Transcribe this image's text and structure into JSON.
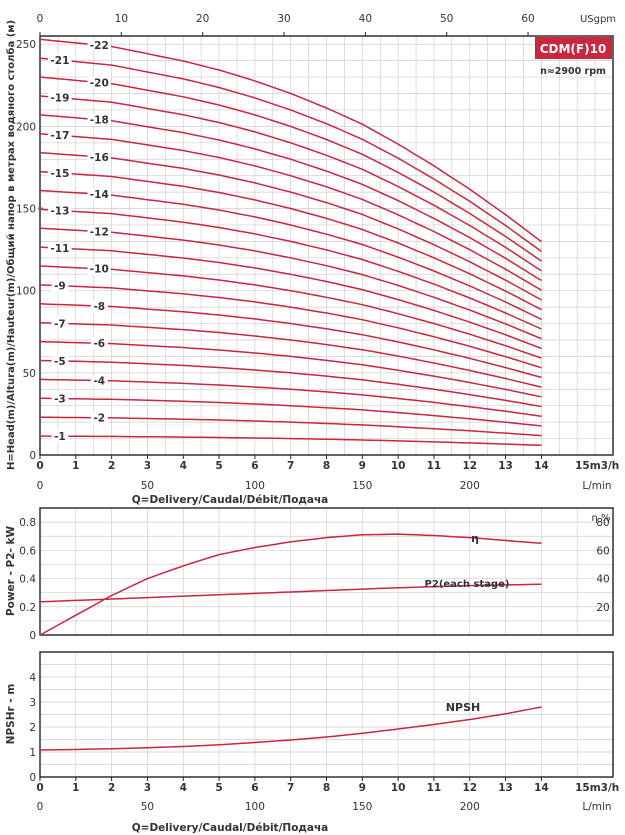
{
  "chart_data": [
    {
      "type": "line",
      "title": "CDM(F)10",
      "subtitle": "n≈2900 rpm",
      "ylabel": "H=Head(m)/Altura(m)/Hauteur(m)/Общий напор в метрах водяного столба (м)",
      "xlabel": "Q=Delivery/Caudal/Débit/Подача",
      "x_units": "m3/h",
      "x_alt_units_bottom": "L/min",
      "x_alt_units_top": "USgpm",
      "xlim": [
        0,
        16
      ],
      "ylim": [
        0,
        255
      ],
      "x_ticks": [
        0,
        1,
        2,
        3,
        4,
        5,
        6,
        7,
        8,
        9,
        10,
        11,
        12,
        13,
        14
      ],
      "x_last_tick_label": "15",
      "y_ticks": [
        0,
        50,
        100,
        150,
        200,
        250
      ],
      "lpm_ticks": [
        0,
        50,
        100,
        150,
        200
      ],
      "usgpm_ticks": [
        0,
        10,
        20,
        30,
        40,
        50,
        60
      ],
      "grid": true,
      "head_per_stage": {
        "x": [
          0,
          1,
          2,
          3,
          4,
          5,
          6,
          7,
          8,
          9,
          10,
          11,
          12,
          13,
          14
        ],
        "y": [
          11.5,
          11.4,
          11.3,
          11.1,
          10.9,
          10.65,
          10.35,
          10.0,
          9.6,
          9.15,
          8.6,
          8.0,
          7.35,
          6.65,
          5.9
        ]
      },
      "series": [
        {
          "name": "-1",
          "stages": 1
        },
        {
          "name": "-2",
          "stages": 2
        },
        {
          "name": "-3",
          "stages": 3
        },
        {
          "name": "-4",
          "stages": 4
        },
        {
          "name": "-5",
          "stages": 5
        },
        {
          "name": "-6",
          "stages": 6
        },
        {
          "name": "-7",
          "stages": 7
        },
        {
          "name": "-8",
          "stages": 8
        },
        {
          "name": "-9",
          "stages": 9
        },
        {
          "name": "-10",
          "stages": 10
        },
        {
          "name": "-11",
          "stages": 11
        },
        {
          "name": "-12",
          "stages": 12
        },
        {
          "name": "-13",
          "stages": 13
        },
        {
          "name": "-14",
          "stages": 14
        },
        {
          "name": "-15",
          "stages": 15
        },
        {
          "name": "-16",
          "stages": 16
        },
        {
          "name": "-17",
          "stages": 17
        },
        {
          "name": "-18",
          "stages": 18
        },
        {
          "name": "-19",
          "stages": 19
        },
        {
          "name": "-20",
          "stages": 20
        },
        {
          "name": "-21",
          "stages": 21
        },
        {
          "name": "-22",
          "stages": 22
        }
      ],
      "label_x": [
        0.5,
        1.6,
        0.5,
        1.6,
        0.5,
        1.6,
        0.5,
        1.6,
        0.5,
        1.6,
        0.5,
        1.6,
        0.5,
        1.6,
        0.5,
        1.6,
        0.5,
        1.6,
        0.5,
        1.6,
        0.5,
        1.6
      ]
    },
    {
      "type": "line",
      "ylabel": "Power - P2- kW",
      "y2label": "η %",
      "xlim": [
        0,
        16
      ],
      "ylim": [
        0,
        0.9
      ],
      "y_ticks": [
        0,
        0.2,
        0.4,
        0.6,
        0.8
      ],
      "y2lim": [
        0,
        90
      ],
      "y2_ticks": [
        20,
        40,
        60,
        80
      ],
      "grid": true,
      "series": [
        {
          "name": "η",
          "axis": "right",
          "x": [
            0,
            1,
            2,
            3,
            4,
            5,
            6,
            7,
            8,
            9,
            10,
            11,
            12,
            13,
            14
          ],
          "y": [
            0,
            14,
            28,
            40,
            49,
            57,
            62,
            66,
            69,
            71,
            71.5,
            70.5,
            69,
            67,
            65
          ]
        },
        {
          "name": "P2(each stage)",
          "axis": "left",
          "x": [
            0,
            2,
            4,
            6,
            8,
            10,
            12,
            14
          ],
          "y": [
            0.235,
            0.255,
            0.275,
            0.295,
            0.315,
            0.335,
            0.35,
            0.36
          ]
        }
      ]
    },
    {
      "type": "line",
      "ylabel": "NPSHr - m",
      "xlabel": "Q=Delivery/Caudal/Débit/Подача",
      "x_units": "m3/h",
      "x_alt_units_bottom": "L/min",
      "xlim": [
        0,
        16
      ],
      "ylim": [
        0,
        5
      ],
      "y_ticks": [
        0,
        1,
        2,
        3,
        4
      ],
      "x_ticks": [
        0,
        1,
        2,
        3,
        4,
        5,
        6,
        7,
        8,
        9,
        10,
        11,
        12,
        13,
        14
      ],
      "x_last_tick_label": "15",
      "lpm_ticks": [
        0,
        50,
        100,
        150,
        200
      ],
      "grid": true,
      "series": [
        {
          "name": "NPSH",
          "x": [
            0,
            1,
            2,
            3,
            4,
            5,
            6,
            7,
            8,
            9,
            10,
            11,
            12,
            13,
            14
          ],
          "y": [
            1.08,
            1.1,
            1.13,
            1.17,
            1.22,
            1.29,
            1.38,
            1.48,
            1.6,
            1.75,
            1.92,
            2.1,
            2.3,
            2.53,
            2.8
          ]
        }
      ]
    }
  ],
  "colors": {
    "curve": "#c8273e",
    "grid": "#cfcfcf",
    "frame": "#222222",
    "badge_bg": "#c8273e",
    "badge_fg": "#ffffff",
    "accent_line": "#2a7fd4"
  }
}
